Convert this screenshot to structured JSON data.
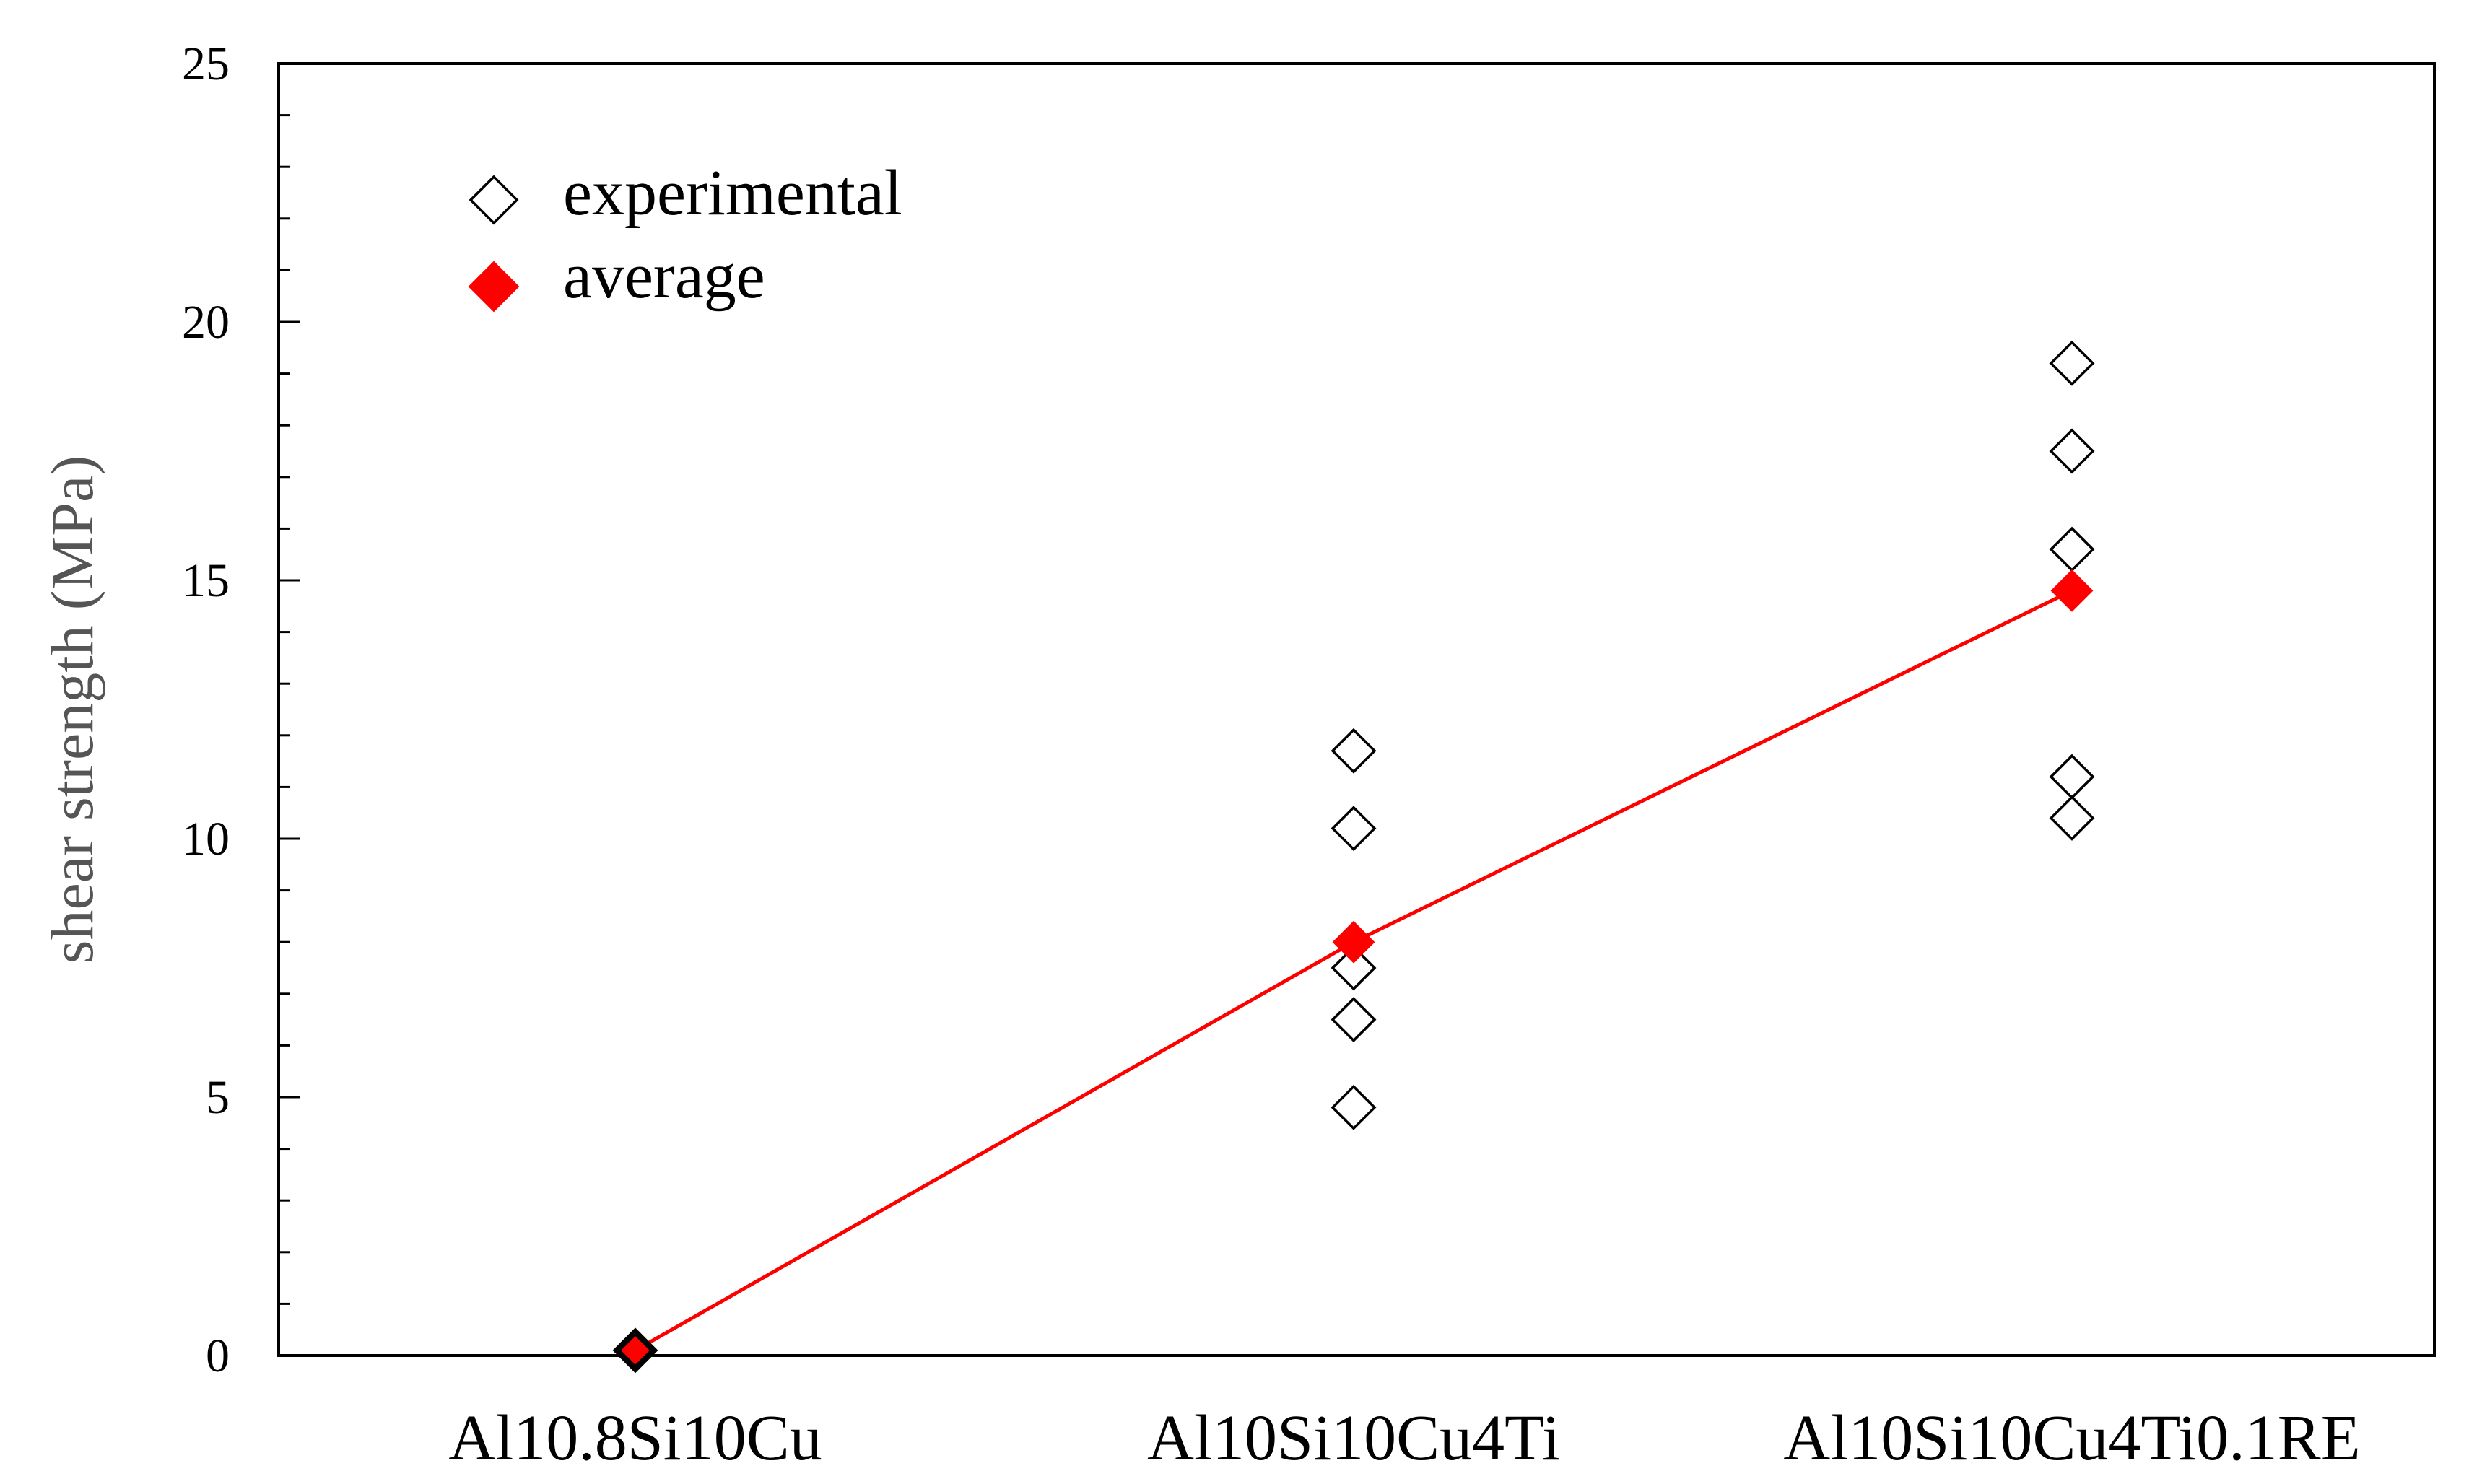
{
  "chart_data": {
    "type": "scatter",
    "title": "",
    "xlabel": "",
    "ylabel": "shear strength (MPa)",
    "categories": [
      "Al10.8Si10Cu",
      "Al10Si10Cu4Ti",
      "Al10Si10Cu4Ti0.1RE"
    ],
    "ylim": [
      0,
      25
    ],
    "yticks": [
      0,
      5,
      10,
      15,
      20,
      25
    ],
    "grid": false,
    "legend_position": "top-left",
    "series": [
      {
        "name": "experimental",
        "marker": "open-diamond",
        "color": "#000000",
        "points": [
          {
            "category": "Al10.8Si10Cu",
            "y": 0.1
          },
          {
            "category": "Al10Si10Cu4Ti",
            "y": 11.7
          },
          {
            "category": "Al10Si10Cu4Ti",
            "y": 10.2
          },
          {
            "category": "Al10Si10Cu4Ti",
            "y": 7.5
          },
          {
            "category": "Al10Si10Cu4Ti",
            "y": 6.5
          },
          {
            "category": "Al10Si10Cu4Ti",
            "y": 4.8
          },
          {
            "category": "Al10Si10Cu4Ti0.1RE",
            "y": 19.2
          },
          {
            "category": "Al10Si10Cu4Ti0.1RE",
            "y": 17.5
          },
          {
            "category": "Al10Si10Cu4Ti0.1RE",
            "y": 15.6
          },
          {
            "category": "Al10Si10Cu4Ti0.1RE",
            "y": 11.2
          },
          {
            "category": "Al10Si10Cu4Ti0.1RE",
            "y": 10.4
          }
        ]
      },
      {
        "name": "average",
        "marker": "filled-diamond",
        "color": "#ff0000",
        "line": true,
        "points": [
          {
            "category": "Al10.8Si10Cu",
            "y": 0.1
          },
          {
            "category": "Al10Si10Cu4Ti",
            "y": 8.0
          },
          {
            "category": "Al10Si10Cu4Ti0.1RE",
            "y": 14.8
          }
        ]
      }
    ]
  }
}
